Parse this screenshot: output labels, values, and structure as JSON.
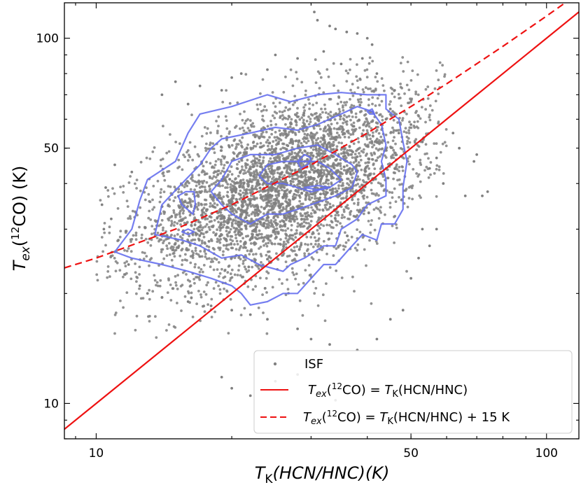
{
  "chart_data": {
    "type": "scatter",
    "title": "",
    "xlabel": "T_K(HCN/HNC)(K)",
    "ylabel": "T_ex(12CO) (K)",
    "xscale": "log",
    "yscale": "log",
    "xlim": [
      8.5,
      118
    ],
    "ylim": [
      8.0,
      125
    ],
    "x_ticks": [
      10,
      50,
      100
    ],
    "y_ticks": [
      10,
      50,
      100
    ],
    "x_tick_labels": [
      "10",
      "50",
      "100"
    ],
    "y_tick_labels": [
      "10",
      "50",
      "100"
    ],
    "grid": false,
    "legend_position": "lower-right",
    "legend": [
      {
        "label": "ISF",
        "marker": "dot",
        "color": "#808080"
      },
      {
        "label": "T_ex(12CO) = T_K(HCN/HNC)",
        "style": "solid",
        "color": "#ee1111"
      },
      {
        "label": "T_ex(12CO) = T_K(HCN/HNC) + 15 K",
        "style": "dashed",
        "color": "#ee1111"
      }
    ],
    "series": [
      {
        "name": "ISF",
        "kind": "scatter",
        "color": "#808080",
        "distribution": {
          "center_x": 26,
          "center_y": 39,
          "log_spread_x": 0.16,
          "log_spread_y": 0.12,
          "count": 4000
        },
        "outliers": [
          [
            30.5,
            118
          ],
          [
            31,
            112
          ],
          [
            33,
            108
          ],
          [
            34,
            106
          ],
          [
            36,
            104
          ],
          [
            38,
            103
          ],
          [
            40,
            100
          ],
          [
            41,
            96
          ],
          [
            25,
            90
          ],
          [
            28,
            88
          ],
          [
            32,
            92
          ],
          [
            35,
            85
          ],
          [
            39,
            88
          ],
          [
            42,
            80
          ],
          [
            24,
            82
          ],
          [
            21,
            80
          ],
          [
            15,
            76
          ],
          [
            17,
            74
          ],
          [
            19,
            72
          ],
          [
            14,
            70
          ],
          [
            16,
            66
          ],
          [
            20,
            78
          ],
          [
            46,
            72
          ],
          [
            45,
            64
          ],
          [
            44,
            60
          ],
          [
            47,
            55
          ],
          [
            50,
            58
          ],
          [
            53,
            52
          ],
          [
            57,
            47
          ],
          [
            62,
            55
          ],
          [
            64,
            50
          ],
          [
            70,
            48
          ],
          [
            69,
            46
          ],
          [
            66,
            37
          ],
          [
            72,
            37
          ],
          [
            74,
            38
          ],
          [
            55,
            44
          ],
          [
            59,
            40
          ],
          [
            11,
            45
          ],
          [
            12,
            43
          ],
          [
            10.5,
            39
          ],
          [
            10.3,
            35
          ],
          [
            10.8,
            32
          ],
          [
            11.2,
            28
          ],
          [
            10.4,
            30
          ],
          [
            11,
            26
          ],
          [
            11.8,
            24
          ],
          [
            12.5,
            21
          ],
          [
            13,
            20
          ],
          [
            14,
            19.5
          ],
          [
            16,
            19
          ],
          [
            18,
            18.5
          ],
          [
            20,
            18
          ],
          [
            22,
            17.5
          ],
          [
            24,
            17
          ],
          [
            28,
            16
          ],
          [
            30,
            15
          ],
          [
            33,
            14.5
          ],
          [
            38,
            14
          ],
          [
            42,
            15
          ],
          [
            45,
            17
          ],
          [
            48,
            18
          ],
          [
            50,
            22
          ],
          [
            52,
            25
          ],
          [
            55,
            27
          ],
          [
            57,
            30
          ],
          [
            53,
            30
          ],
          [
            20,
            11
          ],
          [
            22,
            10.5
          ],
          [
            25,
            11.5
          ],
          [
            28,
            12
          ],
          [
            30,
            11
          ],
          [
            34,
            10.2
          ],
          [
            19,
            11.8
          ]
        ]
      },
      {
        "name": "T_ex(12CO) = T_K(HCN/HNC)",
        "kind": "line",
        "color": "#ee1111",
        "style": "solid",
        "x": [
          8.5,
          118
        ],
        "y": [
          8.5,
          118
        ]
      },
      {
        "name": "T_ex(12CO) = T_K(HCN/HNC) + 15 K",
        "kind": "line",
        "color": "#ee1111",
        "style": "dashed",
        "x": [
          8.5,
          10,
          15,
          20,
          30,
          40,
          50,
          60,
          80,
          100,
          110
        ],
        "y": [
          23.5,
          25,
          30,
          35,
          45,
          55,
          65,
          75,
          95,
          115,
          125
        ]
      }
    ],
    "contours": {
      "color": "#6670ee",
      "levels": [
        {
          "points": [
            [
              11,
              26
            ],
            [
              12,
              30
            ],
            [
              12.5,
              36
            ],
            [
              13,
              41
            ],
            [
              15,
              46
            ],
            [
              16,
              55
            ],
            [
              17,
              62
            ],
            [
              20,
              65
            ],
            [
              24,
              70
            ],
            [
              27,
              67
            ],
            [
              31,
              70
            ],
            [
              35,
              71
            ],
            [
              40,
              70
            ],
            [
              44,
              70
            ],
            [
              44,
              64
            ],
            [
              47,
              60
            ],
            [
              48,
              52
            ],
            [
              49,
              46
            ],
            [
              48,
              39
            ],
            [
              48,
              34
            ],
            [
              46,
              31
            ],
            [
              43,
              31
            ],
            [
              42,
              28
            ],
            [
              39,
              29
            ],
            [
              36,
              26
            ],
            [
              34,
              24
            ],
            [
              32,
              24
            ],
            [
              30,
              22
            ],
            [
              28,
              20
            ],
            [
              26,
              20
            ],
            [
              24,
              19
            ],
            [
              22,
              18.6
            ],
            [
              21,
              20
            ],
            [
              20,
              21
            ],
            [
              18,
              22
            ],
            [
              16,
              23
            ],
            [
              14,
              24
            ],
            [
              12,
              25
            ],
            [
              11,
              26
            ]
          ]
        },
        {
          "points": [
            [
              13.5,
              29
            ],
            [
              14,
              35
            ],
            [
              15.5,
              40
            ],
            [
              17,
              45
            ],
            [
              18,
              50
            ],
            [
              19,
              53
            ],
            [
              22,
              55
            ],
            [
              25,
              57
            ],
            [
              28,
              56
            ],
            [
              31,
              58
            ],
            [
              35,
              62
            ],
            [
              38,
              65
            ],
            [
              41,
              63
            ],
            [
              43,
              58
            ],
            [
              44,
              51
            ],
            [
              43,
              46
            ],
            [
              44,
              41
            ],
            [
              44,
              37
            ],
            [
              40,
              35
            ],
            [
              38,
              32
            ],
            [
              35,
              30
            ],
            [
              34,
              27
            ],
            [
              32,
              27
            ],
            [
              29,
              25
            ],
            [
              27,
              24
            ],
            [
              26,
              23
            ],
            [
              23,
              24
            ],
            [
              21,
              25.5
            ],
            [
              19,
              25
            ],
            [
              17,
              27
            ],
            [
              15.5,
              28
            ],
            [
              13.5,
              29
            ]
          ]
        },
        {
          "points": [
            [
              18,
              38
            ],
            [
              19,
              41
            ],
            [
              20,
              46
            ],
            [
              22,
              48
            ],
            [
              25,
              48
            ],
            [
              28,
              50
            ],
            [
              31,
              51
            ],
            [
              34,
              48
            ],
            [
              37,
              45
            ],
            [
              38,
              43
            ],
            [
              37,
              39
            ],
            [
              34,
              37
            ],
            [
              30,
              35
            ],
            [
              28,
              34
            ],
            [
              26,
              33
            ],
            [
              24,
              33
            ],
            [
              22,
              31
            ],
            [
              20,
              33
            ],
            [
              19,
              35
            ],
            [
              18,
              38
            ]
          ]
        },
        {
          "points": [
            [
              23,
              42
            ],
            [
              24,
              45
            ],
            [
              26,
              46
            ],
            [
              29,
              46
            ],
            [
              31,
              46
            ],
            [
              33,
              44
            ],
            [
              35,
              41
            ],
            [
              33,
              39
            ],
            [
              30,
              38
            ],
            [
              28,
              39
            ],
            [
              26,
              40
            ],
            [
              24,
              40
            ],
            [
              23,
              42
            ]
          ]
        },
        {
          "points": [
            [
              15.2,
              37
            ],
            [
              15.8,
              38
            ],
            [
              16.5,
              38
            ],
            [
              16.6,
              35
            ],
            [
              16.4,
              33
            ],
            [
              15.5,
              35
            ],
            [
              15.2,
              37
            ]
          ]
        },
        {
          "points": [
            [
              28,
              46
            ],
            [
              29,
              48
            ],
            [
              30,
              47
            ],
            [
              29.5,
              45
            ],
            [
              28.5,
              44
            ],
            [
              28,
              46
            ]
          ]
        },
        {
          "points": [
            [
              29,
              39
            ],
            [
              31,
              39.5
            ],
            [
              33,
              39
            ],
            [
              31,
              38.5
            ],
            [
              29,
              39
            ]
          ]
        },
        {
          "points": [
            [
              15.5,
              29.5
            ],
            [
              16,
              30
            ],
            [
              16.5,
              29.5
            ],
            [
              16,
              29
            ],
            [
              15.5,
              29.5
            ]
          ]
        },
        {
          "points": [
            [
              40,
              63
            ],
            [
              41,
              64
            ],
            [
              41.5,
              62
            ],
            [
              40.5,
              62
            ],
            [
              40,
              63
            ]
          ]
        }
      ]
    }
  }
}
